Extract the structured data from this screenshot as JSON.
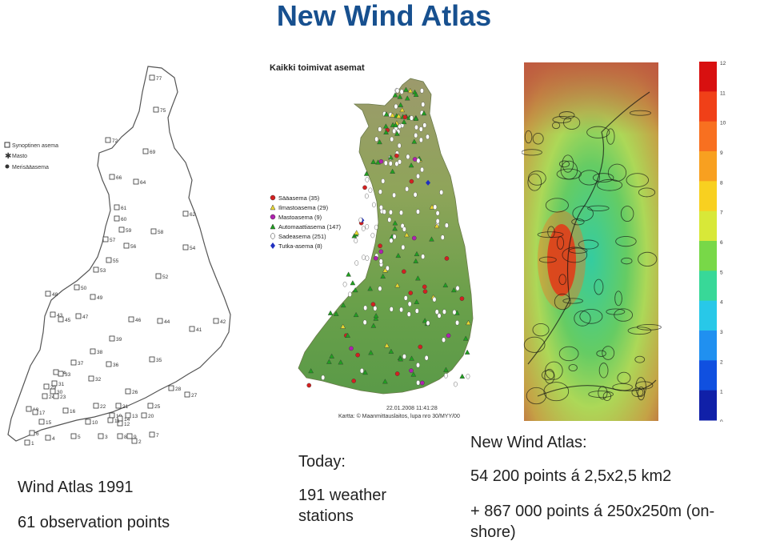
{
  "title": "New Wind Atlas",
  "map1": {
    "legend": [
      "Synoptinen asema",
      "Masto",
      "Merisääasema"
    ],
    "station_numbers": [
      "77",
      "75",
      "72",
      "69",
      "66",
      "64",
      "61",
      "62",
      "60",
      "59",
      "58",
      "57",
      "56",
      "55",
      "54",
      "53",
      "52",
      "50",
      "49",
      "48",
      "47",
      "46",
      "45",
      "44",
      "43",
      "42",
      "41",
      "39",
      "38",
      "37",
      "36",
      "35",
      "34",
      "33",
      "32",
      "31",
      "30",
      "29",
      "28",
      "27",
      "26",
      "25",
      "24",
      "23",
      "22",
      "21",
      "20",
      "19",
      "18",
      "17",
      "16",
      "15",
      "14",
      "13",
      "12",
      "11",
      "10",
      "9",
      "8",
      "7",
      "6",
      "5",
      "4",
      "3",
      "2",
      "1"
    ]
  },
  "map2": {
    "header": "Kaikki toimivat asemat",
    "legend": [
      {
        "label": "Sääasema (35)",
        "color": "#d42020",
        "shape": "circle"
      },
      {
        "label": "Ilmastoasema (29)",
        "color": "#e8d832",
        "shape": "triangle"
      },
      {
        "label": "Mastoasema (9)",
        "color": "#b020b0",
        "shape": "circle"
      },
      {
        "label": "Automaattiasema (147)",
        "color": "#20a020",
        "shape": "triangle"
      },
      {
        "label": "Sadeasema (251)",
        "color": "#ffffff",
        "shape": "drop"
      },
      {
        "label": "Tutka-asema (8)",
        "color": "#2030c0",
        "shape": "diamond"
      }
    ],
    "timestamp": "22.01.2008 11:41:28",
    "credit": "Kartta: © Maanmittauslaitos, lupa nro 30/MYY/00"
  },
  "map3": {
    "colorbar_labels": [
      "12",
      "11",
      "10",
      "9",
      "8",
      "7",
      "6",
      "5",
      "4",
      "3",
      "2",
      "1",
      "0"
    ],
    "colorbar_colors": [
      "#d81010",
      "#f04018",
      "#f87020",
      "#f8a020",
      "#f8d020",
      "#d8e838",
      "#78d848",
      "#38d898",
      "#28c8e8",
      "#2090f0",
      "#1050e0",
      "#1020a8",
      "#101878"
    ]
  },
  "captions": {
    "left": {
      "line1": "Wind Atlas 1991",
      "line2": "61 observation points"
    },
    "middle": {
      "line1": "Today:",
      "line2": "191 weather",
      "line3": "stations"
    },
    "right": {
      "line1": "New Wind Atlas:",
      "line2": "54 200 points  á 2,5x2,5 km2",
      "line3": "+ 867 000 points á 250x250m (on-",
      "line4": "shore)"
    }
  }
}
